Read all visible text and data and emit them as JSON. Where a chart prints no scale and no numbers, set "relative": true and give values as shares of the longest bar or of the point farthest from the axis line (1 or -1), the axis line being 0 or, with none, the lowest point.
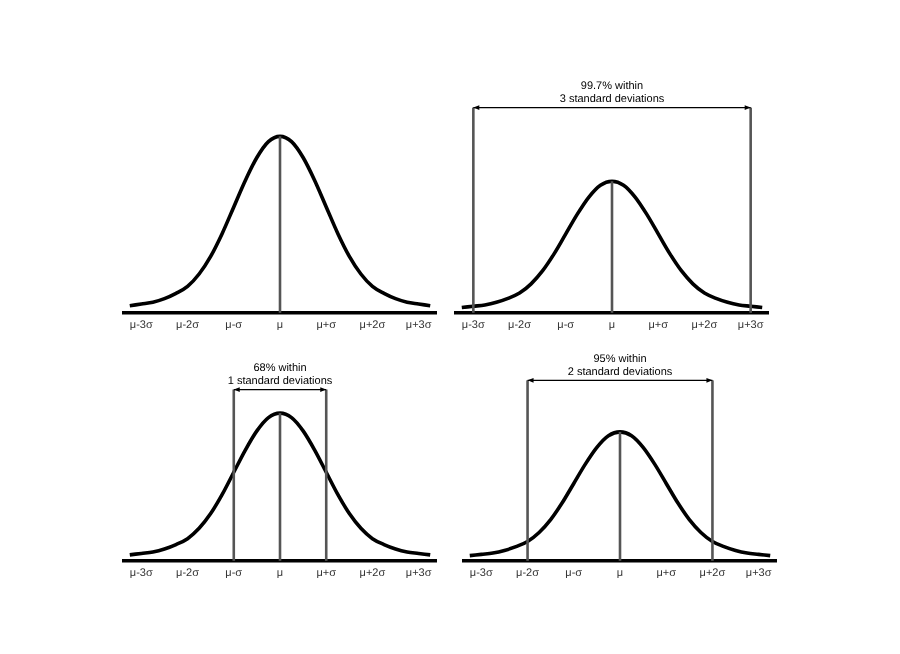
{
  "chart_data": [
    {
      "type": "line",
      "relative": true,
      "marker": "none",
      "grid": false,
      "legend": false,
      "categories": [
        null,
        "μ-3σ",
        null,
        null,
        null,
        "μ-2σ",
        null,
        null,
        null,
        "μ-σ",
        null,
        null,
        null,
        "μ",
        null,
        null,
        null,
        "μ+σ",
        null,
        null,
        null,
        "μ+2σ",
        null,
        null,
        null,
        "μ+3σ",
        null
      ],
      "series": [
        {
          "color": "#000000",
          "values": [
            0.04,
            0.05,
            0.06,
            0.08,
            0.11,
            0.15,
            0.22,
            0.32,
            0.45,
            0.6,
            0.75,
            0.88,
            0.97,
            1,
            0.97,
            0.88,
            0.75,
            0.6,
            0.45,
            0.32,
            0.22,
            0.15,
            0.11,
            0.08,
            0.06,
            0.05,
            0.04
          ]
        }
      ],
      "ref_lines": [
        {
          "axis": "x",
          "value": "μ"
        }
      ]
    },
    {
      "type": "line",
      "relative": true,
      "marker": "none",
      "grid": false,
      "legend": false,
      "categories": [
        null,
        "μ-3σ",
        null,
        null,
        null,
        "μ-2σ",
        null,
        null,
        null,
        "μ-σ",
        null,
        null,
        null,
        "μ",
        null,
        null,
        null,
        "μ+σ",
        null,
        null,
        null,
        "μ+2σ",
        null,
        null,
        null,
        "μ+3σ",
        null
      ],
      "series": [
        {
          "color": "#000000",
          "values": [
            0.04,
            0.05,
            0.06,
            0.08,
            0.11,
            0.15,
            0.22,
            0.32,
            0.45,
            0.6,
            0.75,
            0.88,
            0.97,
            1,
            0.97,
            0.88,
            0.75,
            0.6,
            0.45,
            0.32,
            0.22,
            0.15,
            0.11,
            0.08,
            0.06,
            0.05,
            0.04
          ]
        }
      ],
      "ref_lines": [
        {
          "axis": "x",
          "value": "μ"
        },
        {
          "axis": "x",
          "value": "μ-3σ"
        },
        {
          "axis": "x",
          "value": "μ+3σ"
        }
      ],
      "annotations": [
        "99.7% within\n3 standard deviations"
      ]
    },
    {
      "type": "line",
      "relative": true,
      "marker": "none",
      "grid": false,
      "legend": false,
      "categories": [
        null,
        "μ-3σ",
        null,
        null,
        null,
        "μ-2σ",
        null,
        null,
        null,
        "μ-σ",
        null,
        null,
        null,
        "μ",
        null,
        null,
        null,
        "μ+σ",
        null,
        null,
        null,
        "μ+2σ",
        null,
        null,
        null,
        "μ+3σ",
        null
      ],
      "series": [
        {
          "color": "#000000",
          "values": [
            0.04,
            0.05,
            0.06,
            0.08,
            0.11,
            0.15,
            0.22,
            0.32,
            0.45,
            0.6,
            0.75,
            0.88,
            0.97,
            1,
            0.97,
            0.88,
            0.75,
            0.6,
            0.45,
            0.32,
            0.22,
            0.15,
            0.11,
            0.08,
            0.06,
            0.05,
            0.04
          ]
        }
      ],
      "ref_lines": [
        {
          "axis": "x",
          "value": "μ"
        },
        {
          "axis": "x",
          "value": "μ-σ"
        },
        {
          "axis": "x",
          "value": "μ+σ"
        }
      ],
      "annotations": [
        "68% within\n1 standard deviations"
      ]
    },
    {
      "type": "line",
      "relative": true,
      "marker": "none",
      "grid": false,
      "legend": false,
      "categories": [
        null,
        "μ-3σ",
        null,
        null,
        null,
        "μ-2σ",
        null,
        null,
        null,
        "μ-σ",
        null,
        null,
        null,
        "μ",
        null,
        null,
        null,
        "μ+σ",
        null,
        null,
        null,
        "μ+2σ",
        null,
        null,
        null,
        "μ+3σ",
        null
      ],
      "series": [
        {
          "color": "#000000",
          "values": [
            0.04,
            0.05,
            0.06,
            0.08,
            0.11,
            0.15,
            0.22,
            0.32,
            0.45,
            0.6,
            0.75,
            0.88,
            0.97,
            1,
            0.97,
            0.88,
            0.75,
            0.6,
            0.45,
            0.32,
            0.22,
            0.15,
            0.11,
            0.08,
            0.06,
            0.05,
            0.04
          ]
        }
      ],
      "ref_lines": [
        {
          "axis": "x",
          "value": "μ"
        },
        {
          "axis": "x",
          "value": "μ-2σ"
        },
        {
          "axis": "x",
          "value": "μ+2σ"
        }
      ],
      "annotations": [
        "95% within\n2 standard deviations"
      ]
    }
  ]
}
